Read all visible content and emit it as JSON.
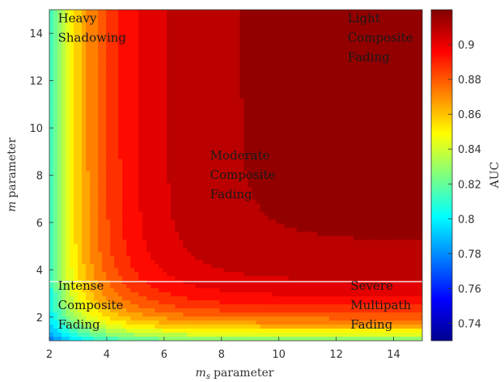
{
  "chart_data": {
    "type": "heatmap",
    "x_label": "parameter",
    "x_label_symbol": "m",
    "x_label_subscript": "s",
    "y_label": "parameter",
    "y_label_symbol": "m",
    "x_range": [
      2,
      15
    ],
    "y_range": [
      1,
      15
    ],
    "x_ticks": [
      2,
      4,
      6,
      8,
      10,
      12,
      14
    ],
    "y_ticks": [
      2,
      4,
      6,
      8,
      10,
      12,
      14
    ],
    "grid": false,
    "colorbar": {
      "label": "AUC",
      "range": [
        0.73,
        0.92
      ],
      "ticks": [
        0.74,
        0.76,
        0.78,
        0.8,
        0.82,
        0.84,
        0.86,
        0.88,
        0.9
      ],
      "colormap": "jet",
      "position": "right"
    },
    "reference_line": {
      "orientation": "horizontal",
      "y": 3.5,
      "color": "#f2f2f2"
    },
    "region_annotations": [
      {
        "id": "heavy-shadowing",
        "lines": [
          "Heavy",
          "Shadowing"
        ],
        "at": [
          2.3,
          14.6
        ]
      },
      {
        "id": "light-composite-fading",
        "lines": [
          "Light",
          "Composite",
          "Fading"
        ],
        "at": [
          12.4,
          14.6
        ]
      },
      {
        "id": "moderate-composite-fading",
        "lines": [
          "Moderate",
          "Composite",
          "Fading"
        ],
        "at": [
          7.6,
          8.8
        ]
      },
      {
        "id": "intense-composite-fading",
        "lines": [
          "Intense",
          "Composite",
          "Fading"
        ],
        "at": [
          2.3,
          3.3
        ]
      },
      {
        "id": "severe-multipath-fading",
        "lines": [
          "Severe",
          "Multipath",
          "Fading"
        ],
        "at": [
          12.5,
          3.3
        ]
      }
    ],
    "auc_model": {
      "description": "AUC surface over (ms, m) reproduced from the colormap",
      "contour_levels": 26,
      "samples": [
        {
          "ms": 2.0,
          "m": 14,
          "auc": 0.825
        },
        {
          "ms": 3.0,
          "m": 14,
          "auc": 0.868
        },
        {
          "ms": 4.0,
          "m": 14,
          "auc": 0.888
        },
        {
          "ms": 14.0,
          "m": 14,
          "auc": 0.912
        },
        {
          "ms": 14.0,
          "m": 6,
          "auc": 0.902
        },
        {
          "ms": 14.0,
          "m": 2,
          "auc": 0.865
        },
        {
          "ms": 8.0,
          "m": 8,
          "auc": 0.896
        },
        {
          "ms": 4.0,
          "m": 2,
          "auc": 0.845
        },
        {
          "ms": 14.0,
          "m": 1.1,
          "auc": 0.83
        }
      ]
    }
  }
}
